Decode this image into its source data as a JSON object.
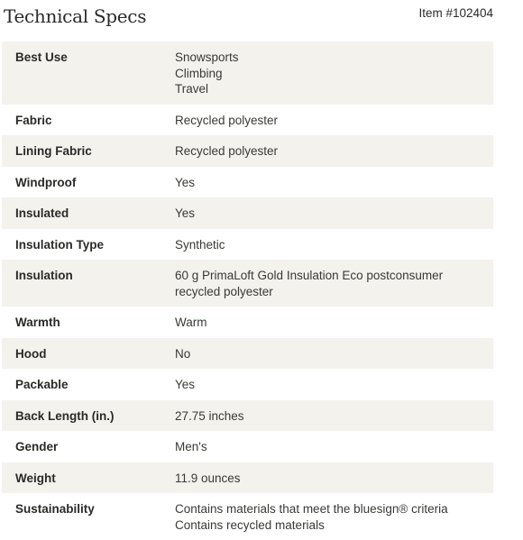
{
  "header": {
    "title": "Technical Specs",
    "item_number": "Item #102404"
  },
  "specs": [
    {
      "label": "Best Use",
      "values": [
        "Snowsports",
        "Climbing",
        "Travel"
      ]
    },
    {
      "label": "Fabric",
      "values": [
        "Recycled polyester"
      ]
    },
    {
      "label": "Lining Fabric",
      "values": [
        "Recycled polyester"
      ]
    },
    {
      "label": "Windproof",
      "values": [
        "Yes"
      ]
    },
    {
      "label": "Insulated",
      "values": [
        "Yes"
      ]
    },
    {
      "label": "Insulation Type",
      "values": [
        "Synthetic"
      ]
    },
    {
      "label": "Insulation",
      "values": [
        "60 g PrimaLoft Gold Insulation Eco postconsumer recycled polyester"
      ]
    },
    {
      "label": "Warmth",
      "values": [
        "Warm"
      ]
    },
    {
      "label": "Hood",
      "values": [
        "No"
      ]
    },
    {
      "label": "Packable",
      "values": [
        "Yes"
      ]
    },
    {
      "label": "Back Length (in.)",
      "values": [
        "27.75 inches"
      ]
    },
    {
      "label": "Gender",
      "values": [
        "Men's"
      ]
    },
    {
      "label": "Weight",
      "values": [
        "11.9 ounces"
      ]
    },
    {
      "label": "Sustainability",
      "values": [
        "Contains materials that meet the bluesign® criteria",
        "Contains recycled materials"
      ]
    }
  ],
  "colors": {
    "stripe": "#f3f2ed",
    "text": "#2b2a28"
  }
}
